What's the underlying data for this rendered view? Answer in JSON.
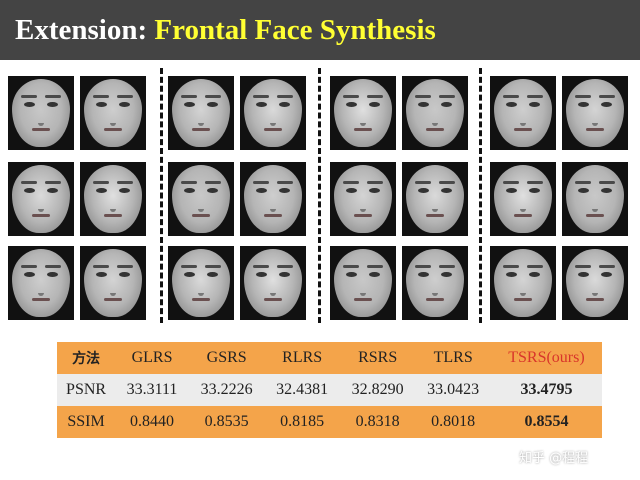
{
  "title": {
    "prefix": "Extension:",
    "highlight": "Frontal Face Synthesis"
  },
  "table": {
    "headers": [
      "方法",
      "GLRS",
      "GSRS",
      "RLRS",
      "RSRS",
      "TLRS",
      "TSRS(ours)"
    ],
    "rows": [
      {
        "label": "PSNR",
        "values": [
          "33.3111",
          "33.2226",
          "32.4381",
          "32.8290",
          "33.0423",
          "33.4795"
        ]
      },
      {
        "label": "SSIM",
        "values": [
          "0.8440",
          "0.8535",
          "0.8185",
          "0.8318",
          "0.8018",
          "0.8554"
        ]
      }
    ]
  },
  "watermark": "知乎 @程程",
  "colors": {
    "title_bar": "#444444",
    "title_highlight": "#ffff33",
    "accent_orange": "#f4a44a",
    "ours_red": "#d9352b"
  }
}
